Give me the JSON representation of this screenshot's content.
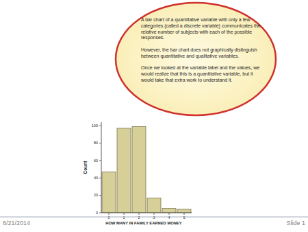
{
  "chart_data": {
    "type": "bar",
    "categories": [
      "0",
      "1",
      "2",
      "3",
      "4",
      "5"
    ],
    "values": [
      47,
      97,
      99,
      17,
      5,
      4
    ],
    "color": "#d6cf98",
    "x_label": "HOW MANY IN FAMILY EARNED MONEY",
    "y_label": "Count",
    "ylim": [
      0,
      104
    ],
    "yticks": [
      0,
      20,
      40,
      60,
      80,
      100
    ],
    "grid": false
  },
  "slide": {
    "date": "8/21/2014",
    "slide_number": "Slide 1",
    "callout": [
      [
        "A bar chart of a quantitative variable with only a few",
        "categories (called a discrete variable) communicates the",
        "relative number of subjects with each of the possible",
        "responses."
      ],
      [
        "However, the bar chart does not graphically distinguish",
        "between quantitative and qualitative variables."
      ],
      [
        "Once we looked at the variable label and the values, we",
        "would realize that this is a quantitative variable, but it",
        "would take that extra work to understand it."
      ]
    ]
  }
}
